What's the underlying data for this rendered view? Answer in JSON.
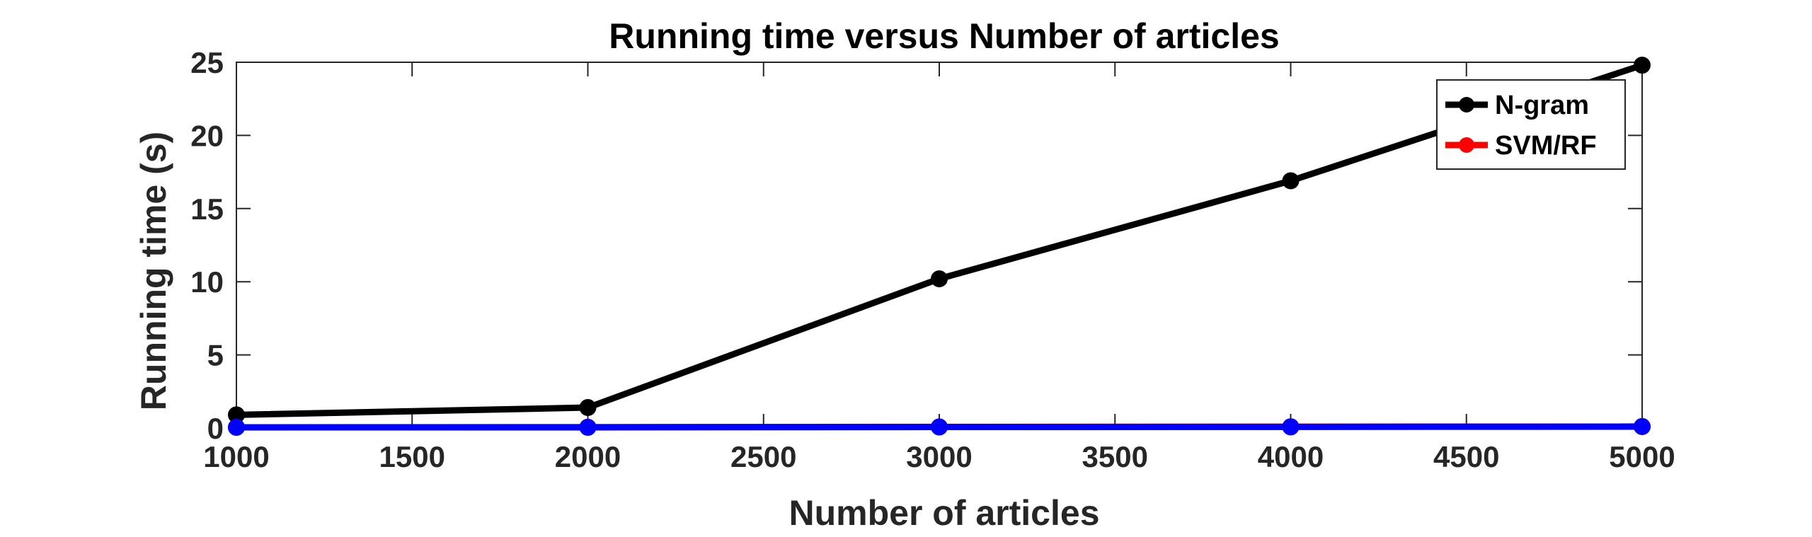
{
  "chart_data": {
    "type": "line",
    "title": "Running time versus Number of articles",
    "xlabel": "Number of articles",
    "ylabel": "Running time (s)",
    "xlim": [
      1000,
      5000
    ],
    "ylim": [
      0,
      25
    ],
    "xticks": [
      1000,
      1500,
      2000,
      2500,
      3000,
      3500,
      4000,
      4500,
      5000
    ],
    "yticks": [
      0,
      5,
      10,
      15,
      20,
      25
    ],
    "grid": false,
    "legend_position": "top-right",
    "series": [
      {
        "name": "N-gram",
        "color": "#000000",
        "marker": "circle",
        "x": [
          1000,
          2000,
          3000,
          4000,
          5000
        ],
        "y": [
          0.9,
          1.4,
          10.2,
          16.9,
          24.8
        ]
      },
      {
        "name": "SVM/RF",
        "color": "#ff0000",
        "marker": "circle",
        "x": [
          1000,
          2000,
          3000,
          4000,
          5000
        ],
        "y": [
          0.05,
          0.06,
          0.08,
          0.09,
          0.1
        ]
      },
      {
        "color": "#0000ff",
        "marker": "circle",
        "x": [
          1000,
          2000,
          3000,
          4000,
          5000
        ],
        "y": [
          0.05,
          0.05,
          0.07,
          0.08,
          0.1
        ]
      }
    ]
  }
}
